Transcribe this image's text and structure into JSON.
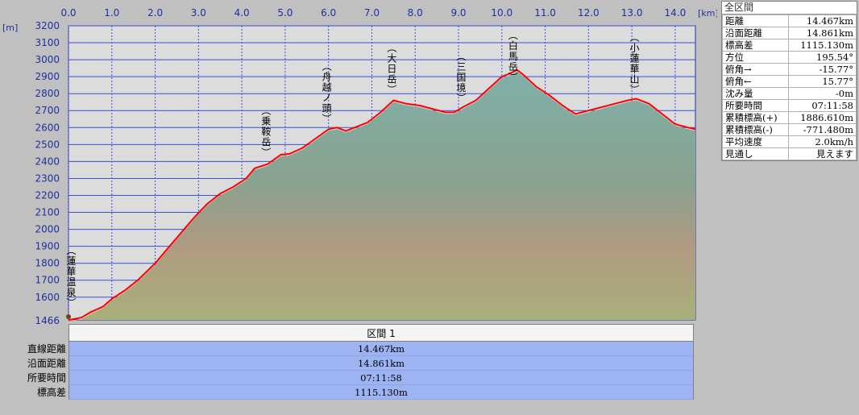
{
  "chart_data": {
    "type": "area",
    "title": "",
    "x_unit": "[km]",
    "y_unit": "[m]",
    "xlim": [
      0,
      14.467
    ],
    "ylim": [
      1466,
      3200
    ],
    "x_ticks": [
      "0.0",
      "1.0",
      "2.0",
      "3.0",
      "4.0",
      "5.0",
      "6.0",
      "7.0",
      "8.0",
      "9.0",
      "10.0",
      "11.0",
      "12.0",
      "13.0",
      "14.0"
    ],
    "y_ticks": [
      "3200",
      "3100",
      "3000",
      "2900",
      "2800",
      "2700",
      "2600",
      "2500",
      "2400",
      "2300",
      "2200",
      "2100",
      "2000",
      "1900",
      "1800",
      "1700",
      "1600",
      "1466"
    ],
    "grid": true,
    "x": [
      0,
      0.1,
      0.3,
      0.5,
      0.8,
      1.0,
      1.3,
      1.6,
      2.0,
      2.3,
      2.6,
      2.9,
      3.2,
      3.5,
      3.8,
      4.1,
      4.3,
      4.6,
      4.9,
      5.1,
      5.4,
      5.7,
      6.0,
      6.2,
      6.4,
      6.6,
      6.9,
      7.2,
      7.5,
      7.8,
      8.1,
      8.4,
      8.7,
      8.9,
      9.1,
      9.4,
      9.7,
      10.0,
      10.2,
      10.35,
      10.5,
      10.8,
      11.1,
      11.4,
      11.7,
      12.0,
      12.3,
      12.6,
      12.9,
      13.1,
      13.4,
      13.7,
      14.0,
      14.3,
      14.467
    ],
    "series": [
      {
        "values": [
          1466,
          1470,
          1480,
          1510,
          1545,
          1590,
          1640,
          1700,
          1800,
          1890,
          1980,
          2070,
          2150,
          2210,
          2250,
          2300,
          2360,
          2385,
          2440,
          2445,
          2480,
          2535,
          2590,
          2600,
          2580,
          2600,
          2630,
          2690,
          2760,
          2740,
          2730,
          2710,
          2690,
          2690,
          2720,
          2760,
          2830,
          2900,
          2920,
          2940,
          2910,
          2840,
          2790,
          2730,
          2680,
          2700,
          2720,
          2740,
          2760,
          2770,
          2740,
          2680,
          2620,
          2600,
          2590
        ],
        "color": "#ff0000"
      }
    ],
    "annotations": [
      {
        "label": "(蓮華温泉)",
        "x": 0.1,
        "y": 1466
      },
      {
        "label": "(乗鞍岳)",
        "x": 4.6,
        "y": 2400
      },
      {
        "label": "(舟越ノ頭)",
        "x": 6.0,
        "y": 2600
      },
      {
        "label": "(大日岳)",
        "x": 7.5,
        "y": 2770
      },
      {
        "label": "(三国境)",
        "x": 9.1,
        "y": 2720
      },
      {
        "label": "(白馬岳)",
        "x": 10.3,
        "y": 2935
      },
      {
        "label": "(小蓮華山)",
        "x": 13.1,
        "y": 2770
      }
    ]
  },
  "side_panel": {
    "title": "全区間",
    "rows": [
      {
        "label": "距離",
        "value": "14.467km"
      },
      {
        "label": "沿面距離",
        "value": "14.861km"
      },
      {
        "label": "標高差",
        "value": "1115.130m"
      },
      {
        "label": "方位",
        "value": "195.54°"
      },
      {
        "label": "俯角→",
        "value": "-15.77°"
      },
      {
        "label": "俯角←",
        "value": "15.77°"
      },
      {
        "label": "沈み量",
        "value": "-0m"
      },
      {
        "label": "所要時間",
        "value": "07:11:58"
      },
      {
        "label": "累積標高(+)",
        "value": "1886.610m"
      },
      {
        "label": "累積標高(-)",
        "value": "-771.480m"
      },
      {
        "label": "平均速度",
        "value": "2.0km/h"
      },
      {
        "label": "見通し",
        "value": "見えます"
      }
    ]
  },
  "bottom_panel": {
    "header": "区間 1",
    "rows": [
      {
        "label": "直線距離",
        "value": "14.467km"
      },
      {
        "label": "沿面距離",
        "value": "14.861km"
      },
      {
        "label": "所要時間",
        "value": "07:11:58"
      },
      {
        "label": "標高差",
        "value": "1115.130m"
      }
    ]
  }
}
